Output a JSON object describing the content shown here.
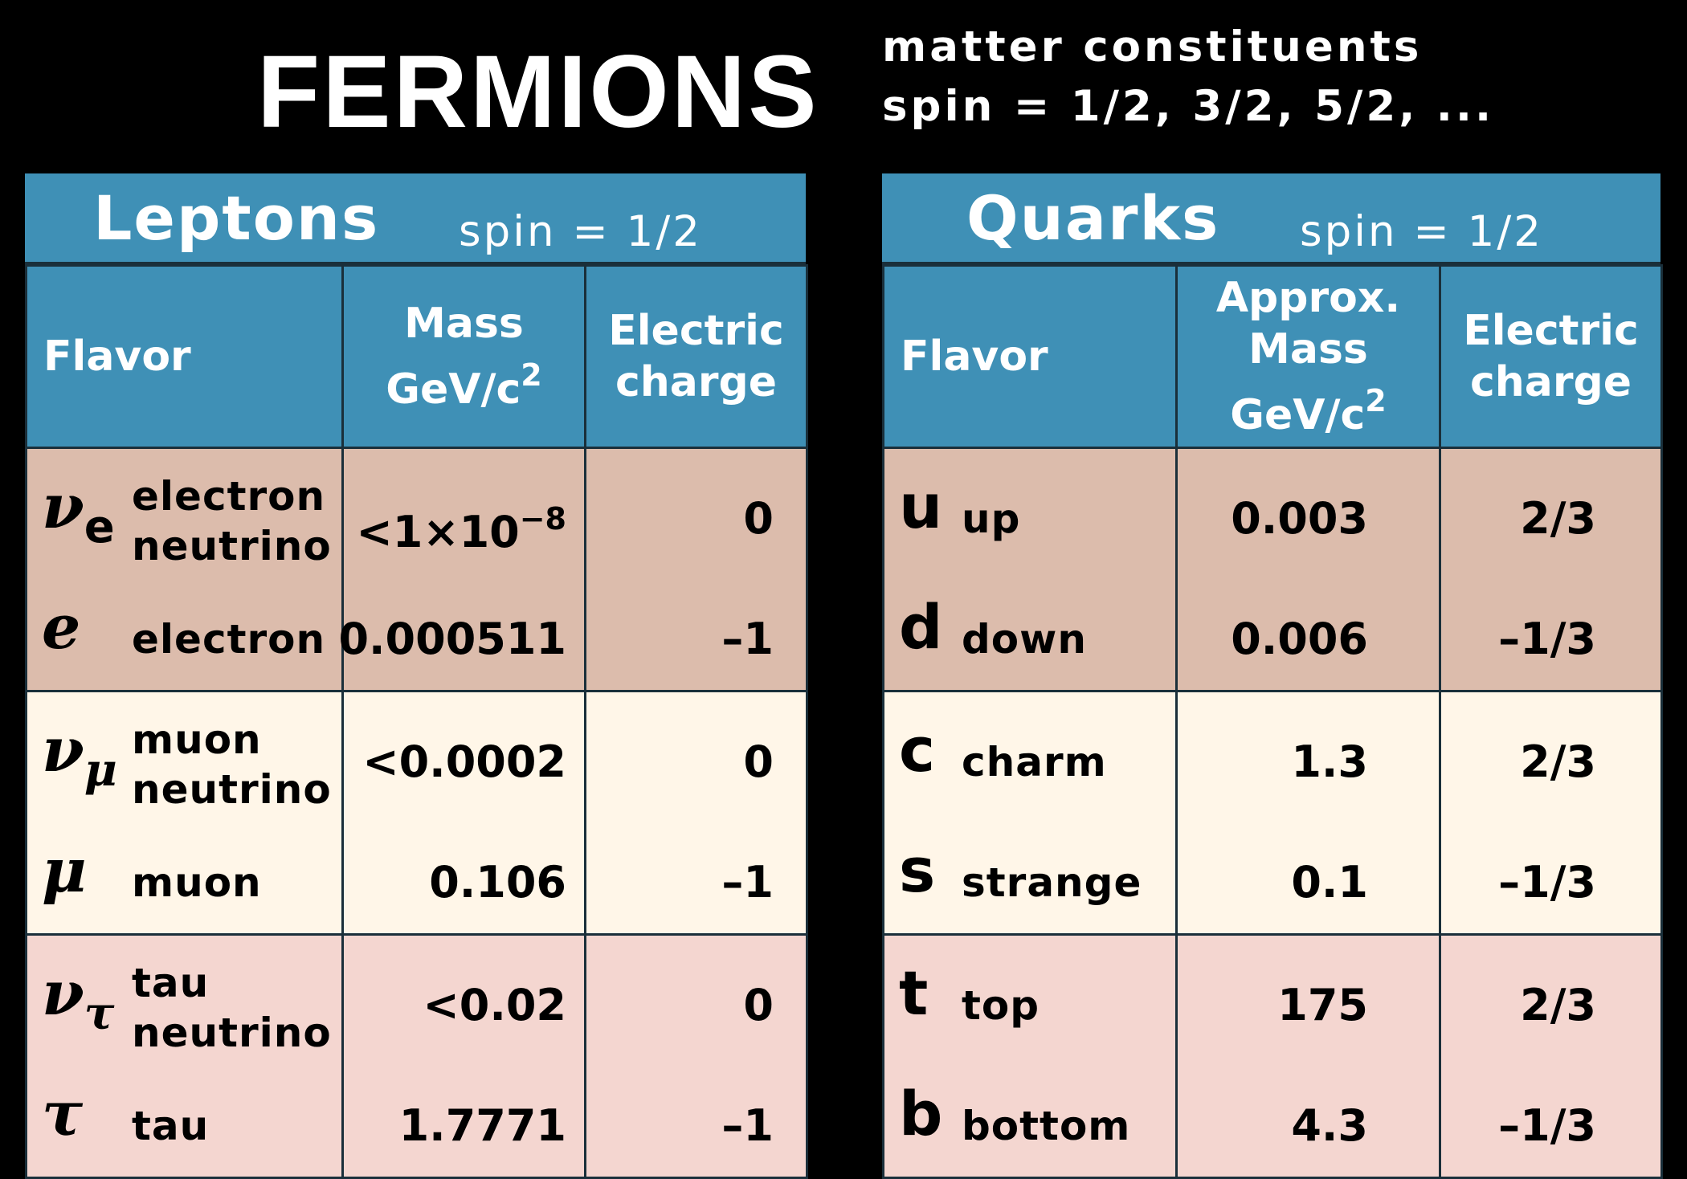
{
  "header": {
    "title": "FERMIONS",
    "subtitle_line1": "matter constituents",
    "subtitle_line2": "spin = 1/2, 3/2, 5/2, ..."
  },
  "leptons": {
    "title": "Leptons",
    "spin": "spin = 1/2",
    "col_flavor": "Flavor",
    "col_mass_line1": "Mass",
    "col_mass_line2": "GeV/c",
    "col_mass_sup": "2",
    "col_charge_line1": "Electric",
    "col_charge_line2": "charge",
    "rows": [
      {
        "symbol": "ν",
        "subscript": "e",
        "name_line1": "electron",
        "name_line2": "neutrino",
        "mass": "<1×10",
        "mass_exp": "−8",
        "charge": "0"
      },
      {
        "symbol": "e",
        "subscript": "",
        "name_line1": "electron",
        "name_line2": "",
        "mass": "0.000511",
        "mass_exp": "",
        "charge": "–1"
      },
      {
        "symbol": "ν",
        "subscript": "μ",
        "name_line1": "muon",
        "name_line2": "neutrino",
        "mass": "<0.0002",
        "mass_exp": "",
        "charge": "0"
      },
      {
        "symbol": "μ",
        "subscript": "",
        "name_line1": "muon",
        "name_line2": "",
        "mass": "0.106",
        "mass_exp": "",
        "charge": "–1"
      },
      {
        "symbol": "ν",
        "subscript": "τ",
        "name_line1": "tau",
        "name_line2": "neutrino",
        "mass": "<0.02",
        "mass_exp": "",
        "charge": "0"
      },
      {
        "symbol": "τ",
        "subscript": "",
        "name_line1": "tau",
        "name_line2": "",
        "mass": "1.7771",
        "mass_exp": "",
        "charge": "–1"
      }
    ]
  },
  "quarks": {
    "title": "Quarks",
    "spin": "spin = 1/2",
    "col_flavor": "Flavor",
    "col_mass_line1": "Approx.",
    "col_mass_line2": "Mass",
    "col_mass_line3": "GeV/c",
    "col_mass_sup": "2",
    "col_charge_line1": "Electric",
    "col_charge_line2": "charge",
    "rows": [
      {
        "symbol": "u",
        "name": "up",
        "mass": "0.003",
        "charge": "2/3"
      },
      {
        "symbol": "d",
        "name": "down",
        "mass": "0.006",
        "charge": "–1/3"
      },
      {
        "symbol": "c",
        "name": "charm",
        "mass": "1.3",
        "charge": "2/3"
      },
      {
        "symbol": "s",
        "name": "strange",
        "mass": "0.1",
        "charge": "–1/3"
      },
      {
        "symbol": "t",
        "name": "top",
        "mass": "175",
        "charge": "2/3"
      },
      {
        "symbol": "b",
        "name": "bottom",
        "mass": "4.3",
        "charge": "–1/3"
      }
    ]
  },
  "colors": {
    "background": "#000000",
    "header_blue": "#3f90b6",
    "generation1": "#dcbcac",
    "generation2": "#fff6e8",
    "generation3": "#f4d6d0"
  }
}
